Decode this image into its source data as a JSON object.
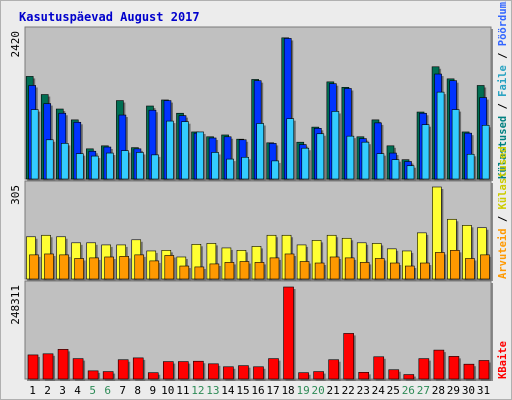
{
  "title": "Kasutuspäevad August 2017",
  "colors": {
    "visits": "#006e52",
    "pages": "#0033ff",
    "hits": "#33ccff",
    "hosts": "#ffff33",
    "hosts_label": "#cccc00",
    "visits_label": "#008080",
    "pages_label": "#3366ff",
    "hits_label": "#2aa3c2",
    "files": "#ff9900",
    "bytes": "#ff0000",
    "weekend_text": "#2e8b57",
    "plot_bg": "#c0c0c0",
    "frame_bg": "#ececec"
  },
  "chart_data": [
    {
      "type": "bar",
      "ymax_label": "2420",
      "ylim": [
        0,
        2420
      ],
      "legend": [
        {
          "label": "Külastused",
          "color_key": "visits_label"
        },
        {
          "label": "Faile",
          "color_key": "hits_label"
        },
        {
          "label": "Pöördumisi",
          "color_key": "pages_label"
        }
      ],
      "legend_sep": "/",
      "categories": [
        "1",
        "2",
        "3",
        "4",
        "5",
        "6",
        "7",
        "8",
        "9",
        "10",
        "11",
        "12",
        "13",
        "14",
        "15",
        "16",
        "17",
        "18",
        "19",
        "20",
        "21",
        "22",
        "23",
        "24",
        "25",
        "26",
        "27",
        "28",
        "29",
        "30",
        "31"
      ],
      "weekend_days": [
        "5",
        "6",
        "12",
        "13",
        "19",
        "20",
        "26",
        "27"
      ],
      "series": [
        {
          "key": "visits",
          "values": [
            1700,
            1400,
            1160,
            980,
            500,
            550,
            1300,
            520,
            1210,
            1310,
            1090,
            780,
            700,
            730,
            660,
            1650,
            600,
            2340,
            610,
            860,
            1610,
            1520,
            700,
            980,
            550,
            320,
            1110,
            1860,
            1660,
            780,
            1550
          ]
        },
        {
          "key": "pages",
          "values": [
            1550,
            1250,
            1090,
            940,
            460,
            530,
            1060,
            500,
            1140,
            1300,
            1050,
            760,
            680,
            700,
            650,
            1630,
            590,
            2330,
            570,
            840,
            1580,
            1500,
            670,
            930,
            430,
            290,
            1090,
            1740,
            1630,
            760,
            1350
          ]
        },
        {
          "key": "hits",
          "values": [
            1150,
            650,
            590,
            420,
            380,
            430,
            470,
            440,
            400,
            960,
            950,
            780,
            440,
            330,
            360,
            920,
            300,
            1000,
            510,
            750,
            1120,
            710,
            610,
            420,
            320,
            220,
            900,
            1440,
            1150,
            410,
            890
          ]
        }
      ]
    },
    {
      "type": "bar",
      "ymax_label": "305",
      "ylim": [
        0,
        305
      ],
      "legend": [
        {
          "label": "Arvuteid",
          "color_key": "files"
        },
        {
          "label": "Külastused",
          "color_key": "hosts_label"
        }
      ],
      "legend_sep": "/",
      "series": [
        {
          "key": "hosts",
          "values": [
            140,
            145,
            140,
            120,
            120,
            113,
            113,
            130,
            93,
            95,
            73,
            115,
            118,
            103,
            95,
            108,
            145,
            145,
            113,
            128,
            145,
            135,
            120,
            118,
            100,
            93,
            153,
            305,
            198,
            178,
            170
          ]
        },
        {
          "key": "files",
          "values": [
            80,
            83,
            80,
            68,
            70,
            73,
            75,
            80,
            60,
            78,
            43,
            40,
            50,
            55,
            58,
            55,
            70,
            83,
            58,
            53,
            73,
            70,
            55,
            68,
            53,
            43,
            53,
            88,
            95,
            68,
            80
          ]
        }
      ]
    },
    {
      "type": "bar",
      "ymax_label": "248311",
      "ylim": [
        0,
        248311
      ],
      "legend": [
        {
          "label": "KBaite",
          "color_key": "bytes"
        }
      ],
      "series": [
        {
          "key": "bytes",
          "values": [
            65000,
            68000,
            80000,
            55000,
            22000,
            20000,
            52000,
            57000,
            17000,
            47000,
            47000,
            48000,
            41000,
            33000,
            36000,
            33000,
            55000,
            248311,
            17000,
            20000,
            52000,
            123000,
            18000,
            60000,
            25000,
            12000,
            55000,
            78000,
            61000,
            40000,
            50000
          ]
        }
      ]
    }
  ]
}
